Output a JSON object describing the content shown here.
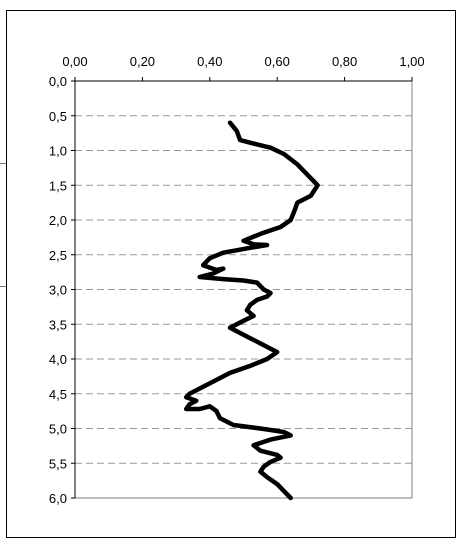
{
  "chart_data": {
    "type": "line",
    "title": "",
    "xlabel": "",
    "ylabel": "",
    "x_axis_position": "top",
    "y_axis_inverted": true,
    "xlim": [
      0,
      1
    ],
    "ylim": [
      0,
      6
    ],
    "x_ticks": [
      "0,00",
      "0,20",
      "0,40",
      "0,60",
      "0,80",
      "1,00"
    ],
    "y_ticks": [
      "0,0",
      "0,5",
      "1,0",
      "1,5",
      "2,0",
      "2,5",
      "3,0",
      "3,5",
      "4,0",
      "4,5",
      "5,0",
      "5,5",
      "6,0"
    ],
    "grid": "horizontal dashed",
    "line_color": "#000000",
    "gridline_color": "#999999",
    "series": [
      {
        "points": [
          [
            0.46,
            0.6
          ],
          [
            0.48,
            0.72
          ],
          [
            0.49,
            0.85
          ],
          [
            0.53,
            0.9
          ],
          [
            0.58,
            0.96
          ],
          [
            0.62,
            1.05
          ],
          [
            0.66,
            1.2
          ],
          [
            0.69,
            1.35
          ],
          [
            0.71,
            1.45
          ],
          [
            0.72,
            1.5
          ],
          [
            0.7,
            1.65
          ],
          [
            0.66,
            1.75
          ],
          [
            0.65,
            1.88
          ],
          [
            0.64,
            2.0
          ],
          [
            0.61,
            2.1
          ],
          [
            0.55,
            2.2
          ],
          [
            0.5,
            2.3
          ],
          [
            0.53,
            2.35
          ],
          [
            0.57,
            2.36
          ],
          [
            0.52,
            2.4
          ],
          [
            0.44,
            2.47
          ],
          [
            0.4,
            2.55
          ],
          [
            0.38,
            2.65
          ],
          [
            0.42,
            2.72
          ],
          [
            0.44,
            2.7
          ],
          [
            0.41,
            2.77
          ],
          [
            0.37,
            2.82
          ],
          [
            0.44,
            2.85
          ],
          [
            0.5,
            2.87
          ],
          [
            0.54,
            2.9
          ],
          [
            0.56,
            3.0
          ],
          [
            0.58,
            3.05
          ],
          [
            0.57,
            3.1
          ],
          [
            0.54,
            3.15
          ],
          [
            0.52,
            3.22
          ],
          [
            0.51,
            3.3
          ],
          [
            0.53,
            3.38
          ],
          [
            0.5,
            3.45
          ],
          [
            0.46,
            3.55
          ],
          [
            0.48,
            3.6
          ],
          [
            0.52,
            3.7
          ],
          [
            0.56,
            3.8
          ],
          [
            0.6,
            3.9
          ],
          [
            0.57,
            4.0
          ],
          [
            0.52,
            4.1
          ],
          [
            0.46,
            4.2
          ],
          [
            0.42,
            4.3
          ],
          [
            0.38,
            4.4
          ],
          [
            0.34,
            4.5
          ],
          [
            0.33,
            4.55
          ],
          [
            0.36,
            4.6
          ],
          [
            0.34,
            4.65
          ],
          [
            0.33,
            4.72
          ],
          [
            0.37,
            4.72
          ],
          [
            0.4,
            4.68
          ],
          [
            0.42,
            4.75
          ],
          [
            0.43,
            4.85
          ],
          [
            0.47,
            4.95
          ],
          [
            0.55,
            5.0
          ],
          [
            0.62,
            5.05
          ],
          [
            0.64,
            5.1
          ],
          [
            0.58,
            5.16
          ],
          [
            0.53,
            5.24
          ],
          [
            0.55,
            5.32
          ],
          [
            0.6,
            5.38
          ],
          [
            0.61,
            5.42
          ],
          [
            0.58,
            5.48
          ],
          [
            0.56,
            5.55
          ],
          [
            0.55,
            5.62
          ],
          [
            0.57,
            5.7
          ],
          [
            0.6,
            5.8
          ],
          [
            0.62,
            5.9
          ],
          [
            0.64,
            6.0
          ]
        ]
      }
    ]
  }
}
